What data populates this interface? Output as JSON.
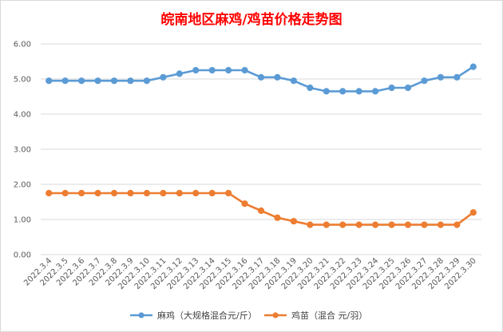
{
  "chart_data": {
    "type": "line",
    "title": "皖南地区麻鸡/鸡苗价格走势图",
    "xlabel": "",
    "ylabel": "",
    "ylim": [
      0,
      6
    ],
    "yticks": [
      "0.00",
      "1.00",
      "2.00",
      "3.00",
      "4.00",
      "5.00",
      "6.00"
    ],
    "grid": true,
    "legend_position": "bottom",
    "categories": [
      "2022.3.4",
      "2022.3.5",
      "2022.3.6",
      "2022.3.7",
      "2022.3.8",
      "2022.3.9",
      "2022.3.10",
      "2022.3.11",
      "2022.3.12",
      "2022.3.13",
      "2022.3.14",
      "2022.3.15",
      "2022.3.16",
      "2022.3.17",
      "2022.3.18",
      "2022.3.19",
      "2022.3.20",
      "2022.3.21",
      "2022.3.22",
      "2022.3.23",
      "2022.3.24",
      "2022.3.25",
      "2022.3.26",
      "2022.3.27",
      "2022.3.28",
      "2022.3.29",
      "2022.3.30"
    ],
    "series": [
      {
        "name": "麻鸡（大规格混合元/斤）",
        "color": "#5b9bd5",
        "values": [
          4.95,
          4.95,
          4.95,
          4.95,
          4.95,
          4.95,
          4.95,
          5.05,
          5.15,
          5.25,
          5.25,
          5.25,
          5.25,
          5.05,
          5.05,
          4.95,
          4.75,
          4.65,
          4.65,
          4.65,
          4.65,
          4.75,
          4.75,
          4.95,
          5.05,
          5.05,
          5.35
        ]
      },
      {
        "name": "鸡苗（混合 元/羽）",
        "color": "#ed7d31",
        "values": [
          1.75,
          1.75,
          1.75,
          1.75,
          1.75,
          1.75,
          1.75,
          1.75,
          1.75,
          1.75,
          1.75,
          1.75,
          1.45,
          1.25,
          1.05,
          0.95,
          0.85,
          0.85,
          0.85,
          0.85,
          0.85,
          0.85,
          0.85,
          0.85,
          0.85,
          0.85,
          1.2
        ]
      }
    ]
  }
}
